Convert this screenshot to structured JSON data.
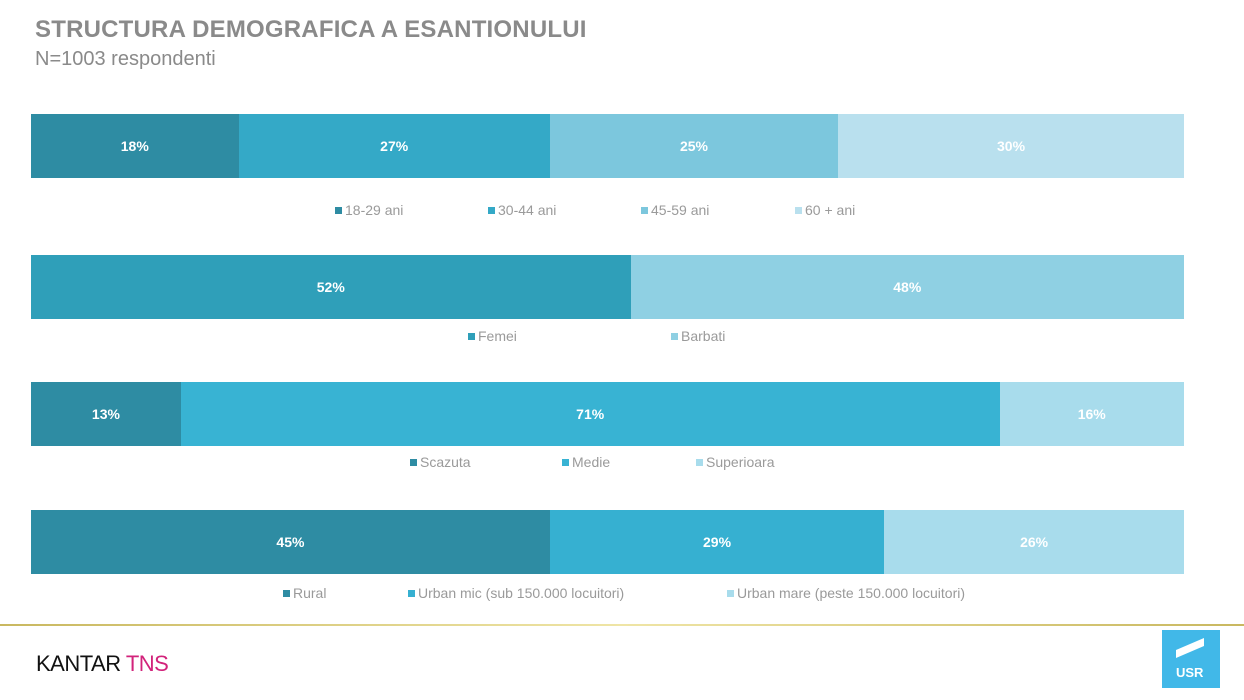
{
  "title": "STRUCTURA DEMOGRAFICA A ESANTIONULUI",
  "subtitle": "N=1003 respondenti",
  "chart_data": [
    {
      "type": "bar",
      "stacked": true,
      "orientation": "horizontal",
      "categories": [
        "18-29 ani",
        "30-44 ani",
        "45-59 ani",
        "60 + ani"
      ],
      "values": [
        18,
        27,
        25,
        30
      ],
      "labels": [
        "18%",
        "27%",
        "25%",
        "30%"
      ],
      "colors": [
        "#2e8ca3",
        "#34a9c7",
        "#7cc7dd",
        "#b9e0ee"
      ],
      "legend": "bottom"
    },
    {
      "type": "bar",
      "stacked": true,
      "orientation": "horizontal",
      "categories": [
        "Femei",
        "Barbati"
      ],
      "values": [
        52,
        48
      ],
      "labels": [
        "52%",
        "48%"
      ],
      "colors": [
        "#2f9fb9",
        "#8fd0e3"
      ],
      "legend": "bottom"
    },
    {
      "type": "bar",
      "stacked": true,
      "orientation": "horizontal",
      "categories": [
        "Scazuta",
        "Medie",
        "Superioara"
      ],
      "values": [
        13,
        71,
        16
      ],
      "labels": [
        "13%",
        "71%",
        "16%"
      ],
      "colors": [
        "#2e8ca3",
        "#38b3d3",
        "#a8dcec"
      ],
      "legend": "bottom"
    },
    {
      "type": "bar",
      "stacked": true,
      "orientation": "horizontal",
      "categories": [
        "Rural",
        "Urban mic (sub 150.000 locuitori)",
        "Urban mare (peste 150.000 locuitori)"
      ],
      "values": [
        45,
        29,
        26
      ],
      "labels": [
        "45%",
        "29%",
        "26%"
      ],
      "colors": [
        "#2e8ca3",
        "#36b0d1",
        "#a8dcec"
      ],
      "legend": "bottom"
    }
  ],
  "footer": {
    "logo_kantar": "KANTAR",
    "logo_tns": "TNS",
    "logo_usr": "USR"
  }
}
